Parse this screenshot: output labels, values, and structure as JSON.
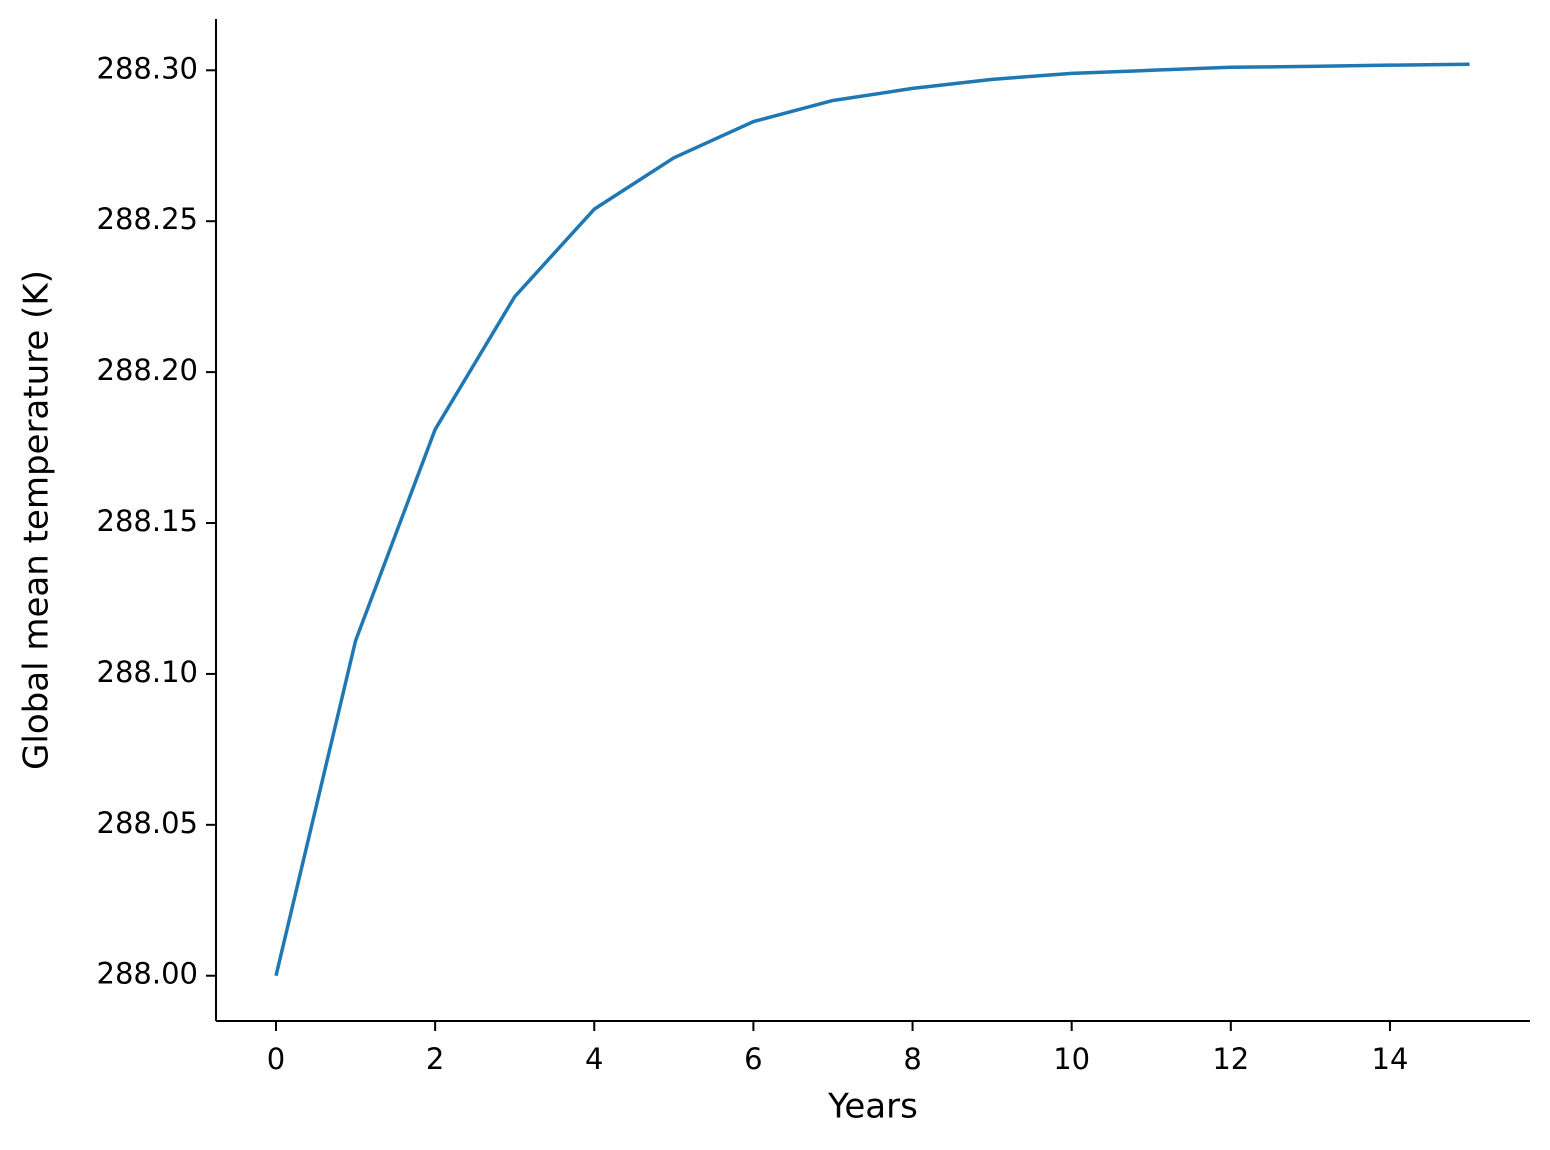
{
  "chart_data": {
    "type": "line",
    "xlabel": "Years",
    "ylabel": "Global mean temperature (K)",
    "x": [
      0,
      1,
      2,
      3,
      4,
      5,
      6,
      7,
      8,
      9,
      10,
      11,
      12,
      13,
      14,
      15
    ],
    "series": [
      {
        "color": "#1f77b4",
        "values": [
          288.0,
          288.111,
          288.181,
          288.225,
          288.254,
          288.271,
          288.283,
          288.29,
          288.294,
          288.297,
          288.299,
          288.3,
          288.301,
          288.3013,
          288.3017,
          288.302
        ]
      }
    ],
    "xlim": [
      -0.754,
      15.76
    ],
    "ylim": [
      287.985,
      288.317
    ],
    "xticks": [
      0,
      2,
      4,
      6,
      8,
      10,
      12,
      14
    ],
    "yticks": [
      {
        "value": 288.0,
        "label": "288.00"
      },
      {
        "value": 288.05,
        "label": "288.05"
      },
      {
        "value": 288.1,
        "label": "288.10"
      },
      {
        "value": 288.15,
        "label": "288.15"
      },
      {
        "value": 288.2,
        "label": "288.20"
      },
      {
        "value": 288.25,
        "label": "288.25"
      },
      {
        "value": 288.3,
        "label": "288.30"
      }
    ],
    "grid": false
  }
}
